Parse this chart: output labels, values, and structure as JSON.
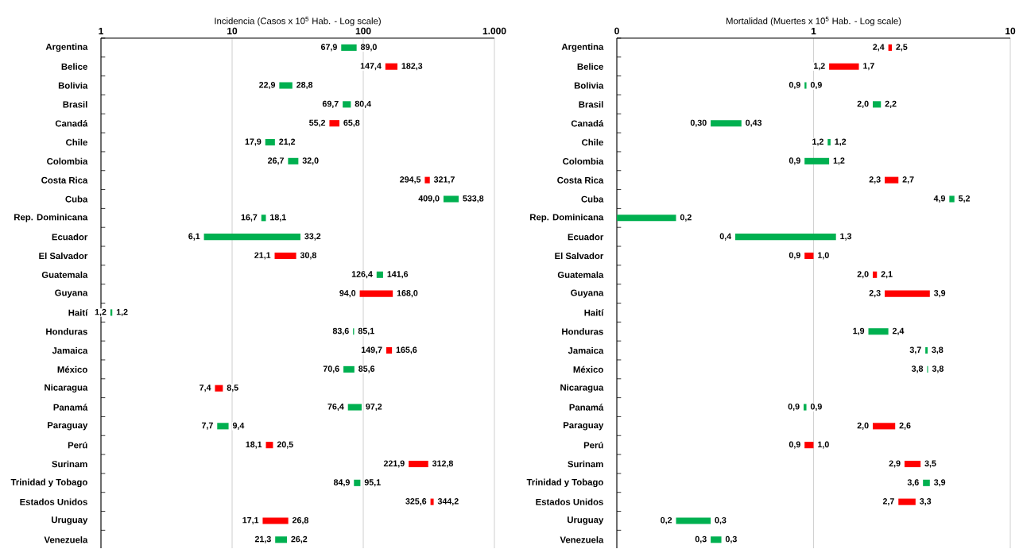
{
  "chart_data": [
    {
      "type": "bar",
      "orientation": "horizontal",
      "title": "Incidencia (Casos x 10$^{5}$ Hab. - Log scale)",
      "log": "x",
      "grid": "x",
      "xlim": [
        1,
        1000
      ],
      "xticks": [
        1,
        10,
        100,
        {
          "value": 1000,
          "label": "1.000"
        }
      ],
      "categories": [
        "Argentina",
        "Belice",
        "Bolivia",
        "Brasil",
        "Canadá",
        "Chile",
        "Colombia",
        "Costa Rica",
        "Cuba",
        "Rep. Dominicana",
        "Ecuador",
        "El Salvador",
        "Guatemala",
        "Guyana",
        "Haití",
        "Honduras",
        "Jamaica",
        "México",
        "Nicaragua",
        "Panamá",
        "Paraguay",
        "Perú",
        "Surinam",
        "Trinidad y Tobago",
        "Estados Unidos",
        "Uruguay",
        "Venezuela"
      ],
      "base": [
        67.9,
        147.4,
        22.9,
        69.7,
        55.2,
        17.9,
        26.7,
        294.5,
        409.0,
        16.7,
        6.1,
        21.1,
        126.4,
        94.0,
        1.18,
        83.6,
        149.7,
        70.6,
        7.4,
        76.4,
        7.7,
        18.1,
        221.9,
        84.9,
        325.6,
        17.1,
        21.3
      ],
      "values": [
        21.1,
        34.9,
        5.9,
        10.7,
        10.6,
        3.3,
        5.3,
        27.2,
        124.8,
        1.4,
        27.1,
        9.7,
        15.2,
        74.0,
        0.04,
        1.5,
        15.9,
        15.0,
        1.1,
        20.8,
        1.7,
        2.4,
        90.9,
        10.2,
        18.6,
        9.7,
        4.9
      ],
      "colors": [
        "#00b050",
        "#ff0000",
        "#00b050",
        "#00b050",
        "#ff0000",
        "#00b050",
        "#00b050",
        "#ff0000",
        "#00b050",
        "#00b050",
        "#00b050",
        "#ff0000",
        "#00b050",
        "#ff0000",
        "#00b050",
        "#00b050",
        "#ff0000",
        "#00b050",
        "#ff0000",
        "#00b050",
        "#00b050",
        "#ff0000",
        "#ff0000",
        "#00b050",
        "#ff0000",
        "#ff0000",
        "#00b050"
      ],
      "annotations": [
        {
          "text": "67,9",
          "x": 67.9,
          "y": "Argentina"
        },
        {
          "text": "89,0",
          "x": 89.0,
          "y": "Argentina"
        },
        {
          "text": "147,4",
          "x": 147.4,
          "y": "Belice"
        },
        {
          "text": "182,3",
          "x": 182.3,
          "y": "Belice"
        },
        {
          "text": "22,9",
          "x": 22.9,
          "y": "Bolivia"
        },
        {
          "text": "28,8",
          "x": 28.8,
          "y": "Bolivia"
        },
        {
          "text": "69,7",
          "x": 69.7,
          "y": "Brasil"
        },
        {
          "text": "80,4",
          "x": 80.4,
          "y": "Brasil"
        },
        {
          "text": "55,2",
          "x": 55.2,
          "y": "Canadá"
        },
        {
          "text": "65,8",
          "x": 65.8,
          "y": "Canadá"
        },
        {
          "text": "17,9",
          "x": 17.9,
          "y": "Chile"
        },
        {
          "text": "21,2",
          "x": 21.2,
          "y": "Chile"
        },
        {
          "text": "26,7",
          "x": 26.7,
          "y": "Colombia"
        },
        {
          "text": "32,0",
          "x": 32.0,
          "y": "Colombia"
        },
        {
          "text": "294,5",
          "x": 294.5,
          "y": "Costa Rica"
        },
        {
          "text": "321,7",
          "x": 321.7,
          "y": "Costa Rica"
        },
        {
          "text": "409,0",
          "x": 409.0,
          "y": "Cuba"
        },
        {
          "text": "533,8",
          "x": 533.8,
          "y": "Cuba"
        },
        {
          "text": "16,7",
          "x": 16.7,
          "y": "Rep. Dominicana"
        },
        {
          "text": "18,1",
          "x": 18.1,
          "y": "Rep. Dominicana"
        },
        {
          "text": "6,1",
          "x": 6.1,
          "y": "Ecuador"
        },
        {
          "text": "33,2",
          "x": 33.2,
          "y": "Ecuador"
        },
        {
          "text": "21,1",
          "x": 21.1,
          "y": "El Salvador"
        },
        {
          "text": "30,8",
          "x": 30.8,
          "y": "El Salvador"
        },
        {
          "text": "126,4",
          "x": 126.4,
          "y": "Guatemala"
        },
        {
          "text": "141,6",
          "x": 141.6,
          "y": "Guatemala"
        },
        {
          "text": "94,0",
          "x": 94.0,
          "y": "Guyana"
        },
        {
          "text": "168,0",
          "x": 168.0,
          "y": "Guyana"
        },
        {
          "text": "1,2",
          "x": 1.18,
          "y": "Haití"
        },
        {
          "text": "1,2",
          "x": 1.22,
          "y": "Haití"
        },
        {
          "text": "83,6",
          "x": 83.6,
          "y": "Honduras"
        },
        {
          "text": "85,1",
          "x": 85.1,
          "y": "Honduras"
        },
        {
          "text": "149,7",
          "x": 149.7,
          "y": "Jamaica"
        },
        {
          "text": "165,6",
          "x": 165.6,
          "y": "Jamaica"
        },
        {
          "text": "70,6",
          "x": 70.6,
          "y": "México"
        },
        {
          "text": "85,6",
          "x": 85.6,
          "y": "México"
        },
        {
          "text": "7,4",
          "x": 7.4,
          "y": "Nicaragua"
        },
        {
          "text": "8,5",
          "x": 8.5,
          "y": "Nicaragua"
        },
        {
          "text": "76,4",
          "x": 76.4,
          "y": "Panamá"
        },
        {
          "text": "97,2",
          "x": 97.2,
          "y": "Panamá"
        },
        {
          "text": "7,7",
          "x": 7.7,
          "y": "Paraguay"
        },
        {
          "text": "9,4",
          "x": 9.4,
          "y": "Paraguay"
        },
        {
          "text": "18,1",
          "x": 18.1,
          "y": "Perú"
        },
        {
          "text": "20,5",
          "x": 20.5,
          "y": "Perú"
        },
        {
          "text": "221,9",
          "x": 221.9,
          "y": "Surinam"
        },
        {
          "text": "312,8",
          "x": 312.8,
          "y": "Surinam"
        },
        {
          "text": "84,9",
          "x": 84.9,
          "y": "Trinidad y Tobago"
        },
        {
          "text": "95,1",
          "x": 95.1,
          "y": "Trinidad y Tobago"
        },
        {
          "text": "325,6",
          "x": 325.6,
          "y": "Estados Unidos"
        },
        {
          "text": "344,2",
          "x": 344.2,
          "y": "Estados Unidos"
        },
        {
          "text": "17,1",
          "x": 17.1,
          "y": "Uruguay"
        },
        {
          "text": "26,8",
          "x": 26.8,
          "y": "Uruguay"
        },
        {
          "text": "21,3",
          "x": 21.3,
          "y": "Venezuela"
        },
        {
          "text": "26,2",
          "x": 26.2,
          "y": "Venezuela"
        }
      ]
    },
    {
      "type": "bar",
      "orientation": "horizontal",
      "title": "Mortalidad (Muertes x 10$^{5}$ Hab. - Log scale)",
      "log": "x",
      "grid": "x",
      "xlim": [
        0.1,
        10
      ],
      "xticks": [
        {
          "value": 0.1,
          "label": "0"
        },
        1,
        10
      ],
      "categories": [
        "Argentina",
        "Belice",
        "Bolivia",
        "Brasil",
        "Canadá",
        "Chile",
        "Colombia",
        "Costa Rica",
        "Cuba",
        "Rep. Dominicana",
        "Ecuador",
        "El Salvador",
        "Guatemala",
        "Guyana",
        "Haití",
        "Honduras",
        "Jamaica",
        "México",
        "Nicaragua",
        "Panamá",
        "Paraguay",
        "Perú",
        "Surinam",
        "Trinidad y Tobago",
        "Estados Unidos",
        "Uruguay",
        "Venezuela"
      ],
      "base": [
        2.4,
        1.2,
        0.9,
        2.0,
        0.3,
        1.18,
        0.9,
        2.3,
        4.9,
        0.1,
        0.4,
        0.9,
        2.0,
        2.3,
        null,
        1.9,
        3.7,
        3.78,
        null,
        0.89,
        2.0,
        0.9,
        2.9,
        3.6,
        2.7,
        0.2,
        0.3
      ],
      "values": [
        0.1,
        0.5,
        0.02,
        0.2,
        0.13,
        0.04,
        0.3,
        0.4,
        0.3,
        0.1,
        0.9,
        0.1,
        0.1,
        1.6,
        null,
        0.5,
        0.1,
        0.04,
        null,
        0.03,
        0.6,
        0.1,
        0.6,
        0.3,
        0.6,
        0.1,
        0.04
      ],
      "colors": [
        "#ff0000",
        "#ff0000",
        "#00b050",
        "#00b050",
        "#00b050",
        "#00b050",
        "#00b050",
        "#ff0000",
        "#00b050",
        "#00b050",
        "#00b050",
        "#ff0000",
        "#ff0000",
        "#ff0000",
        null,
        "#00b050",
        "#00b050",
        "#00b050",
        null,
        "#00b050",
        "#ff0000",
        "#ff0000",
        "#ff0000",
        "#00b050",
        "#ff0000",
        "#00b050",
        "#00b050"
      ],
      "annotations": [
        {
          "text": "2,4",
          "x": 2.4,
          "y": "Argentina"
        },
        {
          "text": "2,5",
          "x": 2.5,
          "y": "Argentina"
        },
        {
          "text": "1,2",
          "x": 1.2,
          "y": "Belice"
        },
        {
          "text": "1,7",
          "x": 1.7,
          "y": "Belice"
        },
        {
          "text": "0,9",
          "x": 0.9,
          "y": "Bolivia"
        },
        {
          "text": "0,9",
          "x": 0.92,
          "y": "Bolivia"
        },
        {
          "text": "2,0",
          "x": 2.0,
          "y": "Brasil"
        },
        {
          "text": "2,2",
          "x": 2.2,
          "y": "Brasil"
        },
        {
          "text": "0,30",
          "x": 0.3,
          "y": "Canadá"
        },
        {
          "text": "0,43",
          "x": 0.43,
          "y": "Canadá"
        },
        {
          "text": "1,2",
          "x": 1.18,
          "y": "Chile"
        },
        {
          "text": "1,2",
          "x": 1.22,
          "y": "Chile"
        },
        {
          "text": "0,9",
          "x": 0.9,
          "y": "Colombia"
        },
        {
          "text": "1,2",
          "x": 1.2,
          "y": "Colombia"
        },
        {
          "text": "2,3",
          "x": 2.3,
          "y": "Costa Rica"
        },
        {
          "text": "2,7",
          "x": 2.7,
          "y": "Costa Rica"
        },
        {
          "text": "4,9",
          "x": 4.9,
          "y": "Cuba"
        },
        {
          "text": "5,2",
          "x": 5.2,
          "y": "Cuba"
        },
        {
          "text": "0,2",
          "x": 0.2,
          "y": "Rep. Dominicana"
        },
        {
          "text": "0,4",
          "x": 0.4,
          "y": "Ecuador"
        },
        {
          "text": "1,3",
          "x": 1.3,
          "y": "Ecuador"
        },
        {
          "text": "0,9",
          "x": 0.9,
          "y": "El Salvador"
        },
        {
          "text": "1,0",
          "x": 1.0,
          "y": "El Salvador"
        },
        {
          "text": "2,0",
          "x": 2.0,
          "y": "Guatemala"
        },
        {
          "text": "2,1",
          "x": 2.1,
          "y": "Guatemala"
        },
        {
          "text": "2,3",
          "x": 2.3,
          "y": "Guyana"
        },
        {
          "text": "3,9",
          "x": 3.9,
          "y": "Guyana"
        },
        {
          "text": "1,9",
          "x": 1.9,
          "y": "Honduras"
        },
        {
          "text": "2,4",
          "x": 2.4,
          "y": "Honduras"
        },
        {
          "text": "3,7",
          "x": 3.7,
          "y": "Jamaica"
        },
        {
          "text": "3,8",
          "x": 3.8,
          "y": "Jamaica"
        },
        {
          "text": "3,8",
          "x": 3.78,
          "y": "México"
        },
        {
          "text": "3,8",
          "x": 3.82,
          "y": "México"
        },
        {
          "text": "0,9",
          "x": 0.89,
          "y": "Panamá"
        },
        {
          "text": "0,9",
          "x": 0.92,
          "y": "Panamá"
        },
        {
          "text": "2,0",
          "x": 2.0,
          "y": "Paraguay"
        },
        {
          "text": "2,6",
          "x": 2.6,
          "y": "Paraguay"
        },
        {
          "text": "0,9",
          "x": 0.9,
          "y": "Perú"
        },
        {
          "text": "1,0",
          "x": 1.0,
          "y": "Perú"
        },
        {
          "text": "2,9",
          "x": 2.9,
          "y": "Surinam"
        },
        {
          "text": "3,5",
          "x": 3.5,
          "y": "Surinam"
        },
        {
          "text": "3,6",
          "x": 3.6,
          "y": "Trinidad y Tobago"
        },
        {
          "text": "3,9",
          "x": 3.9,
          "y": "Trinidad y Tobago"
        },
        {
          "text": "2,7",
          "x": 2.7,
          "y": "Estados Unidos"
        },
        {
          "text": "3,3",
          "x": 3.3,
          "y": "Estados Unidos"
        },
        {
          "text": "0,2",
          "x": 0.2,
          "y": "Uruguay"
        },
        {
          "text": "0,3",
          "x": 0.3,
          "y": "Uruguay"
        },
        {
          "text": "0,3",
          "x": 0.3,
          "y": "Venezuela"
        },
        {
          "text": "0,3",
          "x": 0.34,
          "y": "Venezuela"
        }
      ]
    }
  ]
}
